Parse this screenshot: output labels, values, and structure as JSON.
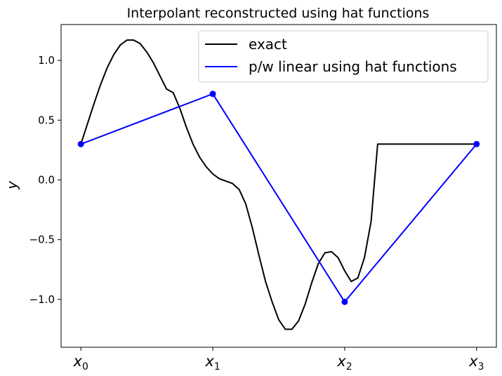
{
  "chart_data": {
    "type": "line",
    "title": "Interpolant reconstructed using hat functions",
    "ylabel": "y",
    "xlabel": "",
    "xlim": [
      -0.15,
      3.15
    ],
    "ylim": [
      -1.4,
      1.3
    ],
    "xticks": [
      {
        "value": 0,
        "base": "x",
        "sub": "0"
      },
      {
        "value": 1,
        "base": "x",
        "sub": "1"
      },
      {
        "value": 2,
        "base": "x",
        "sub": "2"
      },
      {
        "value": 3,
        "base": "x",
        "sub": "3"
      }
    ],
    "yticks": [
      {
        "value": 1.0,
        "label": "1.0"
      },
      {
        "value": 0.5,
        "label": "0.5"
      },
      {
        "value": 0.0,
        "label": "0.0"
      },
      {
        "value": -0.5,
        "label": "−0.5"
      },
      {
        "value": -1.0,
        "label": "−1.0"
      }
    ],
    "grid": false,
    "legend_position": "top-right",
    "series": [
      {
        "name": "exact",
        "color": "#000000",
        "x": [
          0.0,
          0.05,
          0.1,
          0.15,
          0.2,
          0.25,
          0.3,
          0.35,
          0.4,
          0.45,
          0.5,
          0.55,
          0.6,
          0.65,
          0.7,
          0.75,
          0.8,
          0.85,
          0.9,
          0.95,
          1.0,
          1.05,
          1.1,
          1.15,
          1.2,
          1.25,
          1.3,
          1.35,
          1.4,
          1.45,
          1.5,
          1.55,
          1.6,
          1.65,
          1.7,
          1.75,
          1.8,
          1.85,
          1.9,
          1.95,
          2.0,
          2.05,
          2.1,
          2.15,
          2.2,
          2.25,
          2.3,
          2.35,
          2.4,
          2.45,
          2.5,
          2.55,
          2.6,
          2.65,
          2.7,
          2.75,
          2.8,
          2.85,
          2.9,
          2.95,
          3.0
        ],
        "y": [
          0.3,
          0.47,
          0.64,
          0.8,
          0.94,
          1.05,
          1.13,
          1.17,
          1.17,
          1.14,
          1.07,
          0.98,
          0.87,
          0.76,
          0.73,
          0.6,
          0.44,
          0.3,
          0.19,
          0.11,
          0.05,
          0.01,
          -0.01,
          -0.03,
          -0.08,
          -0.2,
          -0.4,
          -0.63,
          -0.85,
          -1.02,
          -1.17,
          -1.25,
          -1.25,
          -1.18,
          -1.04,
          -0.86,
          -0.7,
          -0.61,
          -0.6,
          -0.65,
          -0.76,
          -0.85,
          -0.82,
          -0.65,
          -0.35,
          0.3,
          0.3,
          0.3,
          0.3,
          0.3,
          0.3,
          0.3,
          0.3,
          0.3,
          0.3,
          0.3,
          0.3,
          0.3,
          0.3,
          0.3,
          0.3
        ]
      },
      {
        "name": "p/w linear using hat functions",
        "color": "#0000ff",
        "x": [
          0,
          1,
          2,
          3
        ],
        "y": [
          0.3,
          0.72,
          -1.02,
          0.3
        ],
        "markers": true
      }
    ]
  }
}
